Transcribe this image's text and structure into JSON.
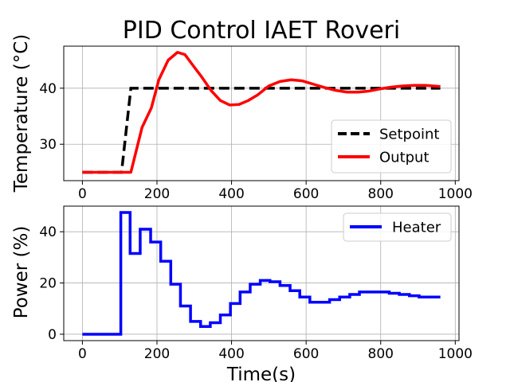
{
  "chart_data": [
    {
      "type": "line",
      "title": "PID Control IAET Roveri",
      "xlabel": "",
      "ylabel": "Temperature (°C)",
      "xlim": [
        -50,
        1010
      ],
      "ylim": [
        23.5,
        47.5
      ],
      "xticks": [
        0,
        200,
        400,
        600,
        800,
        1000
      ],
      "xtick_labels": [
        "0",
        "200",
        "400",
        "600",
        "800",
        "1000"
      ],
      "yticks": [
        30,
        40
      ],
      "ytick_labels": [
        "30",
        "40"
      ],
      "grid": true,
      "legend_position": "lower-right",
      "series": [
        {
          "name": "Setpoint",
          "color": "#000000",
          "style": "dashed",
          "x": [
            0,
            105,
            130,
            960
          ],
          "y": [
            25,
            25,
            40,
            40
          ]
        },
        {
          "name": "Output",
          "color": "#ff0000",
          "style": "solid",
          "x": [
            0,
            100,
            130,
            160,
            185,
            205,
            230,
            255,
            275,
            295,
            320,
            345,
            370,
            395,
            420,
            445,
            470,
            500,
            530,
            560,
            590,
            620,
            650,
            680,
            710,
            740,
            770,
            800,
            830,
            860,
            890,
            920,
            960
          ],
          "y": [
            25,
            25,
            25,
            33,
            36.5,
            41.5,
            45,
            46.4,
            46,
            44.2,
            42,
            39.6,
            37.8,
            37,
            37.1,
            37.8,
            38.8,
            40.4,
            41.2,
            41.5,
            41.3,
            40.7,
            40.1,
            39.6,
            39.3,
            39.3,
            39.5,
            39.9,
            40.2,
            40.4,
            40.5,
            40.5,
            40.3
          ]
        }
      ]
    },
    {
      "type": "line",
      "title": "",
      "xlabel": "Time(s)",
      "ylabel": "Power (%)",
      "xlim": [
        -50,
        1010
      ],
      "ylim": [
        -2.5,
        50
      ],
      "xticks": [
        0,
        200,
        400,
        600,
        800,
        1000
      ],
      "xtick_labels": [
        "0",
        "200",
        "400",
        "600",
        "800",
        "1000"
      ],
      "yticks": [
        0,
        20,
        40
      ],
      "ytick_labels": [
        "0",
        "20",
        "40"
      ],
      "grid": true,
      "legend_position": "top-right",
      "series": [
        {
          "name": "Heater",
          "color": "#0000ff",
          "style": "steps",
          "x": [
            0,
            103,
            128,
            155,
            183,
            210,
            237,
            263,
            290,
            317,
            343,
            370,
            397,
            423,
            450,
            477,
            503,
            530,
            557,
            583,
            610,
            637,
            663,
            690,
            717,
            743,
            770,
            797,
            823,
            850,
            877,
            903,
            930,
            960
          ],
          "y": [
            0,
            47.5,
            31.5,
            41,
            36,
            28.5,
            19.5,
            11,
            5,
            3,
            4.5,
            7.5,
            12,
            16.5,
            19.5,
            21,
            20.5,
            19,
            17,
            14.5,
            12.5,
            12.5,
            13.5,
            14.5,
            15.5,
            16.5,
            16.5,
            16.5,
            16,
            15.5,
            15,
            14.5,
            14.5,
            14.5
          ]
        }
      ]
    }
  ]
}
